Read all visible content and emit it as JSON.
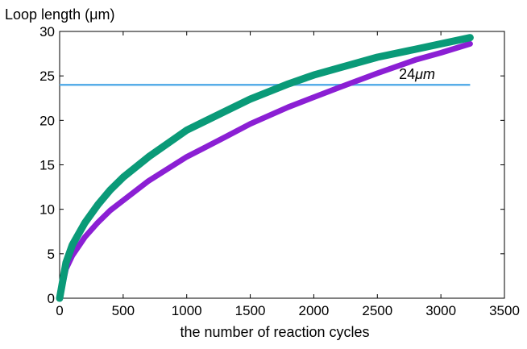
{
  "chart_data": {
    "type": "line",
    "title": "",
    "ylabel": "Loop length (μm)",
    "xlabel": "the number of reaction cycles",
    "xlim": [
      0,
      3500
    ],
    "ylim": [
      0,
      30
    ],
    "xticks": [
      0,
      500,
      1000,
      1500,
      2000,
      2500,
      3000,
      3500
    ],
    "yticks": [
      0,
      5,
      10,
      15,
      20,
      25,
      30
    ],
    "grid": false,
    "series": [
      {
        "name": "purple",
        "color": "#8b1fd4",
        "x": [
          0,
          50,
          100,
          200,
          300,
          400,
          500,
          700,
          1000,
          1300,
          1500,
          1800,
          2000,
          2200,
          2500,
          2800,
          3000,
          3230
        ],
        "y": [
          0,
          3.3,
          4.8,
          6.9,
          8.5,
          9.9,
          11.0,
          13.2,
          15.9,
          18.1,
          19.6,
          21.5,
          22.6,
          23.7,
          25.3,
          26.8,
          27.6,
          28.6
        ]
      },
      {
        "name": "green",
        "color": "#0a9a78",
        "x": [
          0,
          50,
          100,
          200,
          300,
          400,
          500,
          700,
          1000,
          1300,
          1500,
          1800,
          2000,
          2200,
          2500,
          2800,
          3000,
          3230
        ],
        "y": [
          0,
          4.0,
          6.0,
          8.5,
          10.5,
          12.2,
          13.6,
          15.9,
          18.9,
          21.0,
          22.4,
          24.1,
          25.1,
          25.9,
          27.1,
          28.0,
          28.6,
          29.3
        ]
      }
    ],
    "hline": {
      "y": 24,
      "x_start": 0,
      "x_end": 3230,
      "color": "#58aee8"
    },
    "annotation": {
      "text_number": "24",
      "text_unit": "μm",
      "x": 2860,
      "y": 24
    }
  }
}
